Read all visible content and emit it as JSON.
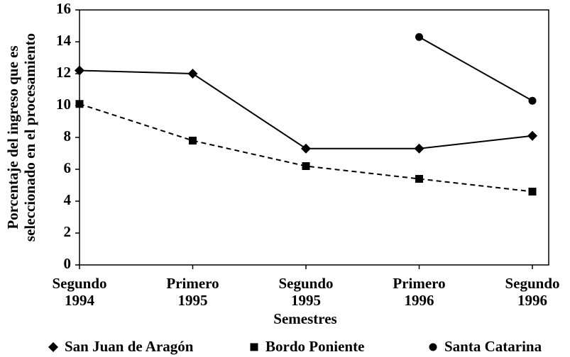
{
  "chart_data": {
    "type": "line",
    "ylabel": [
      "Porcentaje del ingreso que es",
      "seleccionado en el procesamiento"
    ],
    "xlabel": "Semestres",
    "categories": [
      "Segundo 1994",
      "Primero 1995",
      "Segundo 1995",
      "Primero 1996",
      "Segundo 1996"
    ],
    "series": [
      {
        "name": "San Juan de Aragón",
        "color": "#000000",
        "marker": "diamond",
        "line_style": "solid",
        "values": [
          12.2,
          12.0,
          7.3,
          7.3,
          8.1
        ]
      },
      {
        "name": "Bordo Poniente",
        "color": "#000000",
        "marker": "square",
        "line_style": "dashed",
        "values": [
          10.1,
          7.8,
          6.2,
          5.4,
          4.6
        ]
      },
      {
        "name": "Santa Catarina",
        "color": "#000000",
        "marker": "circle",
        "line_style": "solid",
        "values": [
          null,
          null,
          null,
          14.3,
          10.3
        ]
      }
    ],
    "ylim": [
      0,
      16
    ],
    "yticks": [
      0,
      2,
      4,
      6,
      8,
      10,
      12,
      14,
      16
    ],
    "grid": false,
    "legend": "bottom"
  }
}
